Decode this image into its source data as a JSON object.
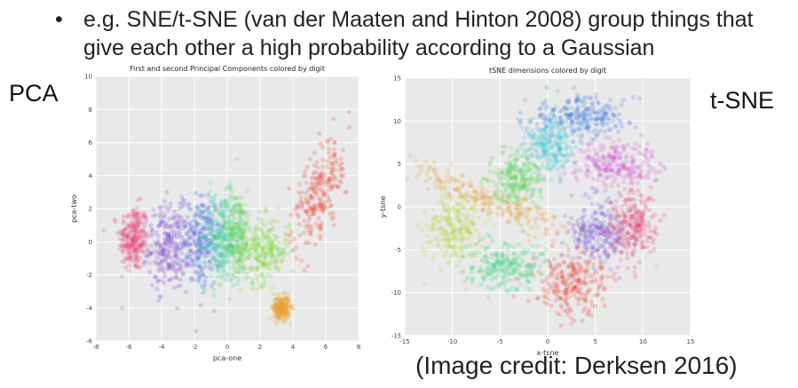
{
  "slide": {
    "bullet_symbol": "•",
    "bullet_text": "e.g. SNE/t-SNE (van der Maaten and Hinton 2008) group things that give each other a high probability according to a Gaussian",
    "left_label": "PCA",
    "right_label": "t-SNE",
    "credit": "(Image credit: Derksen 2016)"
  },
  "chart_data": [
    {
      "type": "scatter",
      "title": "First and second Principal Components colored by digit",
      "xlabel": "pca-one",
      "ylabel": "pca-two",
      "xlim": [
        -8,
        8
      ],
      "ylim": [
        -6,
        10
      ],
      "xticks": [
        "-8",
        "-6",
        "-4",
        "-2",
        "0",
        "2",
        "4",
        "6",
        "8"
      ],
      "yticks": [
        "-6",
        "-4",
        "-2",
        "0",
        "2",
        "4",
        "6",
        "8",
        "10"
      ],
      "grid": true,
      "series": [
        {
          "color": "#e8467c",
          "cx": -5.7,
          "cy": 0.2,
          "sx": 0.45,
          "sy": 1.0,
          "rot": 0
        },
        {
          "color": "#8a4fd8",
          "cx": -3.6,
          "cy": -0.3,
          "sx": 0.6,
          "sy": 1.3,
          "rot": 0
        },
        {
          "color": "#4a5fe0",
          "cx": -1.6,
          "cy": 0.0,
          "sx": 0.6,
          "sy": 1.4,
          "rot": 0
        },
        {
          "color": "#3ed2b0",
          "cx": -0.4,
          "cy": 0.2,
          "sx": 0.6,
          "sy": 1.4,
          "rot": 0
        },
        {
          "color": "#5fd85f",
          "cx": 0.5,
          "cy": 0.5,
          "sx": 0.5,
          "sy": 1.3,
          "rot": 0
        },
        {
          "color": "#7fdc3a",
          "cx": 2.2,
          "cy": -0.5,
          "sx": 0.8,
          "sy": 1.0,
          "rot": 0
        },
        {
          "color": "#e8a23a",
          "cx": 3.3,
          "cy": -4.0,
          "sx": 0.25,
          "sy": 0.35,
          "rot": 0
        },
        {
          "color": "#e84a3a",
          "cx": 5.6,
          "cy": 3.0,
          "sx": 0.6,
          "sy": 1.8,
          "rot": -20
        }
      ]
    },
    {
      "type": "scatter",
      "title": "tSNE dimensions colored by digit",
      "xlabel": "x-tsne",
      "ylabel": "y-tsne",
      "xlim": [
        -15,
        15
      ],
      "ylim": [
        -15,
        15
      ],
      "xticks": [
        "-15",
        "-10",
        "-5",
        "0",
        "5",
        "10",
        "15"
      ],
      "yticks": [
        "-15",
        "-10",
        "-5",
        "0",
        "5",
        "10",
        "15"
      ],
      "grid": true,
      "series": [
        {
          "color": "#4a7fe0",
          "cx": 3.5,
          "cy": 10.5,
          "sx": 2.8,
          "sy": 1.1,
          "rot": 0
        },
        {
          "color": "#3ec8d8",
          "cx": 0.2,
          "cy": 7.2,
          "sx": 1.3,
          "sy": 1.8,
          "rot": 0
        },
        {
          "color": "#5fd85f",
          "cx": -3.2,
          "cy": 3.2,
          "sx": 1.4,
          "sy": 1.6,
          "rot": 0
        },
        {
          "color": "#d35fd8",
          "cx": 7.0,
          "cy": 5.0,
          "sx": 2.2,
          "sy": 1.3,
          "rot": 0
        },
        {
          "color": "#e8a23a",
          "cx": -6.5,
          "cy": 1.0,
          "sx": 5.2,
          "sy": 0.8,
          "rot": -25
        },
        {
          "color": "#b5d84a",
          "cx": -10.0,
          "cy": -2.5,
          "sx": 1.5,
          "sy": 2.2,
          "rot": 0
        },
        {
          "color": "#7a5fe0",
          "cx": 5.2,
          "cy": -2.8,
          "sx": 1.4,
          "sy": 2.0,
          "rot": 0
        },
        {
          "color": "#e8467c",
          "cx": 9.0,
          "cy": -2.0,
          "sx": 1.3,
          "sy": 2.2,
          "rot": 0
        },
        {
          "color": "#4ad88a",
          "cx": -4.5,
          "cy": -7.0,
          "sx": 2.0,
          "sy": 1.4,
          "rot": 0
        },
        {
          "color": "#e84a3a",
          "cx": 2.5,
          "cy": -9.0,
          "sx": 1.8,
          "sy": 1.8,
          "rot": 0
        }
      ]
    }
  ]
}
